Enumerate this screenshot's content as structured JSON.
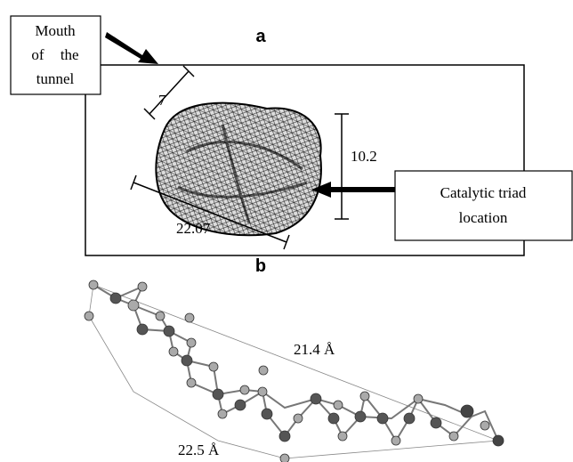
{
  "panel_a": {
    "label": "a",
    "mouth_box": {
      "lines": [
        "Mouth",
        "of the",
        "tunnel"
      ]
    },
    "dimensions": [
      "7",
      "10.2",
      "22.07"
    ],
    "triad_box": {
      "lines": [
        "Catalytic triad",
        "location"
      ]
    }
  },
  "panel_b": {
    "label": "b",
    "distances": [
      "21.4 Å",
      "22.5 Å"
    ]
  }
}
